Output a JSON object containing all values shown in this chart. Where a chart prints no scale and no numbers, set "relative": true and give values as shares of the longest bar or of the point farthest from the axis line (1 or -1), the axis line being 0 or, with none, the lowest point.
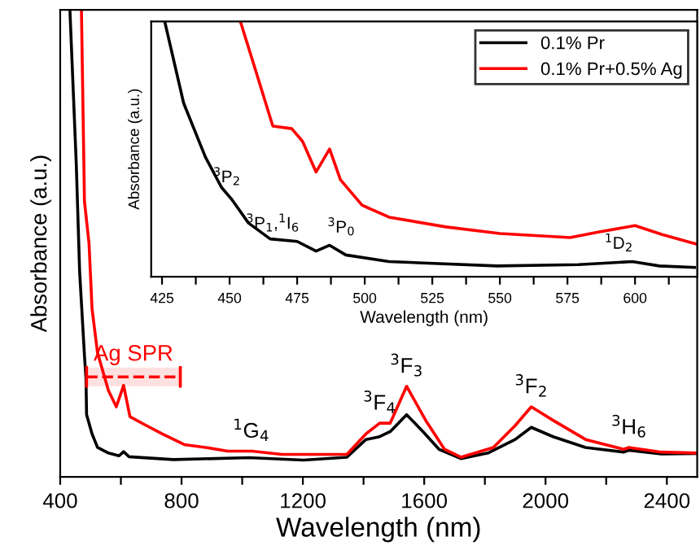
{
  "chart_data": [
    {
      "type": "line",
      "relative": true,
      "xlabel": "Wavelength (nm)",
      "ylabel": "Absorbance (a.u.)",
      "xlim": [
        400,
        2500
      ],
      "xticks": [
        400,
        {
          "value": 600,
          "label": null
        },
        800,
        {
          "value": 1000,
          "label": null
        },
        1200,
        {
          "value": 1400,
          "label": null
        },
        1600,
        {
          "value": 1800,
          "label": null
        },
        2000,
        {
          "value": 2200,
          "label": null
        },
        2400
      ],
      "legend": false,
      "series": [
        {
          "color": "#000000",
          "x": [
            432,
            453,
            464,
            480,
            485,
            487,
            505,
            523,
            559,
            594,
            609,
            627,
            773,
            1023,
            1202,
            1345,
            1408,
            1453,
            1488,
            1542,
            1596,
            1649,
            1721,
            1810,
            1900,
            1953,
            2025,
            2132,
            2257,
            2275,
            2382,
            2499
          ],
          "values": [
            1.0,
            0.67,
            0.44,
            0.26,
            0.21,
            0.133,
            0.092,
            0.063,
            0.051,
            0.045,
            0.054,
            0.043,
            0.037,
            0.041,
            0.036,
            0.042,
            0.08,
            0.086,
            0.097,
            0.133,
            0.097,
            0.059,
            0.039,
            0.051,
            0.08,
            0.106,
            0.086,
            0.063,
            0.053,
            0.057,
            0.049,
            0.05
          ]
        },
        {
          "color": "#ff0000",
          "x": [
            470,
            480,
            495,
            505,
            523,
            559,
            585,
            609,
            630,
            675,
            737,
            809,
            880,
            952,
            1032,
            1131,
            1345,
            1408,
            1453,
            1488,
            1542,
            1605,
            1667,
            1721,
            1828,
            1900,
            1953,
            2025,
            2132,
            2257,
            2275,
            2382,
            2499
          ],
          "values": [
            1.0,
            0.59,
            0.5,
            0.36,
            0.266,
            0.185,
            0.15,
            0.196,
            0.129,
            0.113,
            0.092,
            0.069,
            0.063,
            0.055,
            0.055,
            0.048,
            0.048,
            0.092,
            0.115,
            0.115,
            0.194,
            0.121,
            0.059,
            0.042,
            0.063,
            0.11,
            0.15,
            0.121,
            0.08,
            0.059,
            0.063,
            0.053,
            0.051
          ]
        }
      ],
      "bands": [
        {
          "axis": "x",
          "from": 487,
          "to": 796,
          "label": "Ag SPR",
          "color": "#ff0000"
        }
      ],
      "annotations": [
        {
          "text": "$^{1}$G$_{4}$",
          "x": 1030,
          "y": 0.055
        },
        {
          "text": "$^{3}$F$_{4}$",
          "x": 1453,
          "y": 0.115
        },
        {
          "text": "$^{3}$F$_{3}$",
          "x": 1542,
          "y": 0.194
        },
        {
          "text": "$^{3}$F$_{2}$",
          "x": 1953,
          "y": 0.15
        },
        {
          "text": "$^{3}$H$_{6}$",
          "x": 2275,
          "y": 0.063
        }
      ]
    },
    {
      "type": "line",
      "relative": true,
      "xlabel": "Wavelength (nm)",
      "ylabel": "Absorbance (a.u.)",
      "xlim": [
        421,
        623
      ],
      "xticks": [
        425,
        {
          "value": 437.5,
          "label": null
        },
        450,
        {
          "value": 462.5,
          "label": null
        },
        475,
        {
          "value": 487.5,
          "label": null
        },
        500,
        {
          "value": 512.5,
          "label": null
        },
        525,
        {
          "value": 537.5,
          "label": null
        },
        550,
        {
          "value": 562.5,
          "label": null
        },
        575,
        {
          "value": 587.5,
          "label": null
        },
        600,
        {
          "value": 612.5,
          "label": null
        }
      ],
      "legend": "top right",
      "series": [
        {
          "name": "0.1% Pr",
          "color": "#000000",
          "x": [
            426,
            433,
            441,
            447,
            451,
            457,
            465,
            475,
            482,
            487,
            493,
            509,
            549,
            579,
            599,
            609,
            622
          ],
          "values": [
            1.0,
            0.68,
            0.47,
            0.35,
            0.3,
            0.21,
            0.148,
            0.138,
            0.1,
            0.123,
            0.085,
            0.059,
            0.042,
            0.047,
            0.059,
            0.042,
            0.036
          ]
        },
        {
          "name": "0.1% Pr+0.5% Ag",
          "color": "#ff0000",
          "x": [
            454,
            459,
            466,
            473,
            477,
            482,
            487,
            491,
            499,
            509,
            530,
            550,
            576,
            586,
            600,
            610,
            623
          ],
          "values": [
            1.0,
            0.83,
            0.59,
            0.58,
            0.53,
            0.41,
            0.5,
            0.38,
            0.28,
            0.233,
            0.195,
            0.169,
            0.153,
            0.174,
            0.2,
            0.165,
            0.127
          ]
        }
      ],
      "annotations": [
        {
          "text": "$^{3}$P$_{2}$",
          "x": 449,
          "y": 0.32
        },
        {
          "text": "$^{3}$P$_{1}$,$^{1}$I$_{6}$",
          "x": 475,
          "y": 0.138
        },
        {
          "text": "$^{3}$P$_{0}$",
          "x": 487,
          "y": 0.123
        },
        {
          "text": "$^{1}$D$_{2}$",
          "x": 594,
          "y": 0.06
        }
      ]
    }
  ]
}
